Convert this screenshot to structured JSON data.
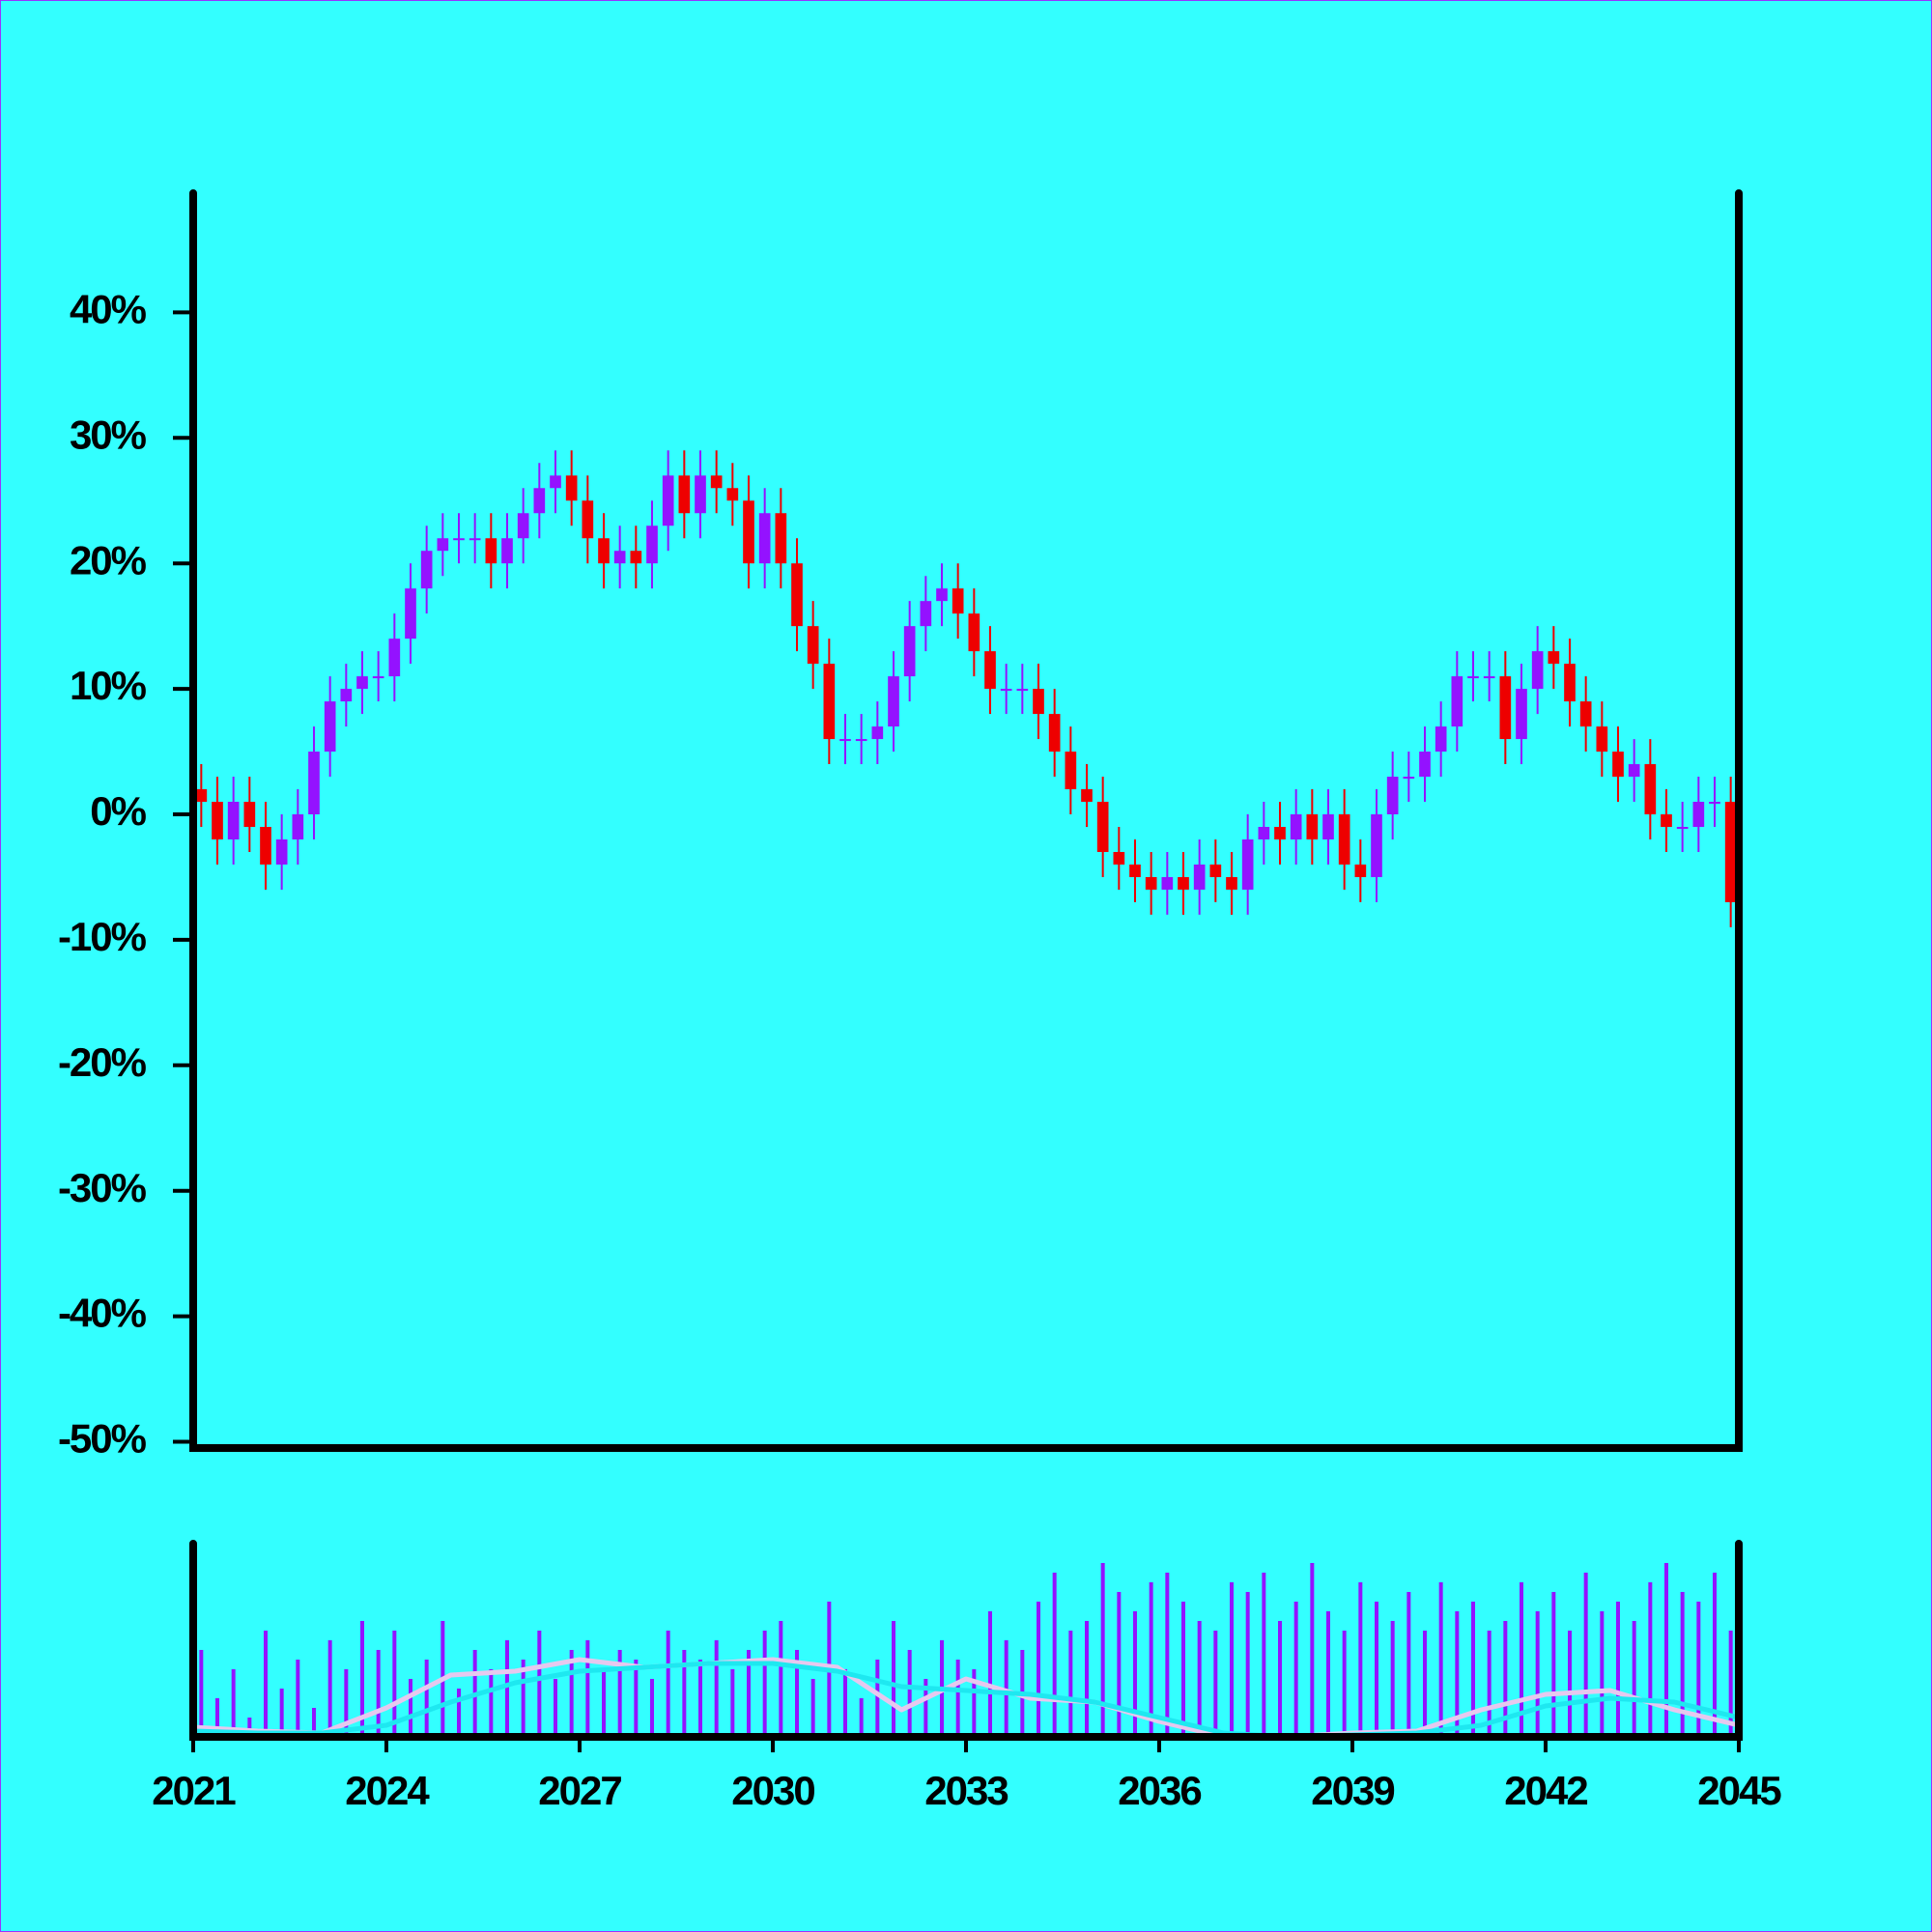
{
  "chart_data": {
    "type": "candlestick",
    "x": [
      2021.125,
      2021.375,
      2021.625,
      2021.875,
      2022.125,
      2022.375,
      2022.625,
      2022.875,
      2023.125,
      2023.375,
      2023.625,
      2023.875,
      2024.125,
      2024.375,
      2024.625,
      2024.875,
      2025.125,
      2025.375,
      2025.625,
      2025.875,
      2026.125,
      2026.375,
      2026.625,
      2026.875,
      2027.125,
      2027.375,
      2027.625,
      2027.875,
      2028.125,
      2028.375,
      2028.625,
      2028.875,
      2029.125,
      2029.375,
      2029.625,
      2029.875,
      2030.125,
      2030.375,
      2030.625,
      2030.875,
      2031.125,
      2031.375,
      2031.625,
      2031.875,
      2032.125,
      2032.375,
      2032.625,
      2032.875,
      2033.125,
      2033.375,
      2033.625,
      2033.875,
      2034.125,
      2034.375,
      2034.625,
      2034.875,
      2035.125,
      2035.375,
      2035.625,
      2035.875,
      2036.125,
      2036.375,
      2036.625,
      2036.875,
      2037.125,
      2037.375,
      2037.625,
      2037.875,
      2038.125,
      2038.375,
      2038.625,
      2038.875,
      2039.125,
      2039.375,
      2039.625,
      2039.875,
      2040.125,
      2040.375,
      2040.625,
      2040.875,
      2041.125,
      2041.375,
      2041.625,
      2041.875,
      2042.125,
      2042.375,
      2042.625,
      2042.875,
      2043.125,
      2043.375,
      2043.625,
      2043.875,
      2044.125,
      2044.375,
      2044.625,
      2044.875
    ],
    "open": [
      2,
      1,
      -2,
      1,
      -1,
      -4,
      -2,
      0,
      5,
      9,
      10,
      11,
      11,
      14,
      18,
      21,
      22,
      22,
      22,
      20,
      22,
      24,
      26,
      27,
      25,
      22,
      20,
      21,
      20,
      23,
      27,
      24,
      27,
      26,
      25,
      20,
      24,
      20,
      15,
      12,
      6,
      6,
      6,
      7,
      11,
      15,
      17,
      18,
      16,
      13,
      10,
      10,
      10,
      8,
      5,
      2,
      1,
      -3,
      -4,
      -5,
      -6,
      -5,
      -6,
      -4,
      -5,
      -6,
      -2,
      -1,
      -2,
      0,
      -2,
      0,
      -4,
      -5,
      0,
      3,
      3,
      5,
      7,
      11,
      11,
      11,
      6,
      10,
      13,
      12,
      9,
      7,
      5,
      3,
      4,
      0,
      -1,
      -1,
      1,
      1
    ],
    "high": [
      4,
      3,
      3,
      3,
      1,
      0,
      2,
      7,
      11,
      12,
      13,
      13,
      16,
      20,
      23,
      24,
      24,
      24,
      24,
      24,
      26,
      28,
      29,
      29,
      27,
      24,
      23,
      23,
      25,
      29,
      29,
      29,
      29,
      28,
      27,
      26,
      26,
      22,
      17,
      14,
      8,
      8,
      9,
      13,
      17,
      19,
      20,
      20,
      18,
      15,
      12,
      12,
      12,
      10,
      7,
      4,
      3,
      -1,
      -2,
      -3,
      -3,
      -3,
      -2,
      -2,
      -3,
      0,
      1,
      1,
      2,
      2,
      2,
      2,
      -2,
      2,
      5,
      5,
      7,
      9,
      13,
      13,
      13,
      13,
      12,
      15,
      15,
      14,
      11,
      9,
      7,
      6,
      6,
      2,
      1,
      3,
      3,
      3
    ],
    "low": [
      -1,
      -4,
      -4,
      -3,
      -6,
      -6,
      -4,
      -2,
      3,
      7,
      8,
      9,
      9,
      12,
      16,
      19,
      20,
      20,
      18,
      18,
      20,
      22,
      24,
      23,
      20,
      18,
      18,
      18,
      18,
      21,
      22,
      22,
      24,
      23,
      18,
      18,
      18,
      13,
      10,
      4,
      4,
      4,
      4,
      5,
      9,
      13,
      15,
      14,
      11,
      8,
      8,
      8,
      6,
      3,
      0,
      -1,
      -5,
      -6,
      -7,
      -8,
      -8,
      -8,
      -8,
      -7,
      -8,
      -8,
      -4,
      -4,
      -4,
      -4,
      -4,
      -6,
      -7,
      -7,
      -2,
      1,
      1,
      3,
      5,
      9,
      9,
      4,
      4,
      8,
      10,
      7,
      5,
      3,
      1,
      1,
      -2,
      -3,
      -3,
      -3,
      -1,
      -9
    ],
    "close": [
      1,
      -2,
      1,
      -1,
      -4,
      -2,
      0,
      5,
      9,
      10,
      11,
      11,
      14,
      18,
      21,
      22,
      22,
      22,
      20,
      22,
      24,
      26,
      27,
      25,
      22,
      20,
      21,
      20,
      23,
      27,
      24,
      27,
      26,
      25,
      20,
      24,
      20,
      15,
      12,
      6,
      6,
      6,
      7,
      11,
      15,
      17,
      18,
      16,
      13,
      10,
      10,
      10,
      8,
      5,
      2,
      1,
      -3,
      -4,
      -5,
      -6,
      -5,
      -6,
      -4,
      -5,
      -6,
      -2,
      -1,
      -2,
      0,
      -2,
      0,
      -4,
      -5,
      0,
      3,
      3,
      5,
      7,
      11,
      11,
      11,
      6,
      10,
      13,
      12,
      9,
      7,
      5,
      3,
      4,
      0,
      -1,
      -1,
      1,
      1,
      -7
    ],
    "up_color": "#9412ff",
    "down_color": "#ee0000",
    "xlim": [
      2021,
      2045
    ],
    "xticks": [
      2021,
      2024,
      2027,
      2030,
      2033,
      2036,
      2039,
      2042,
      2045
    ],
    "ylim": [
      -50.5,
      49.5
    ],
    "yticks": [
      {
        "value": -50,
        "label": "-50%"
      },
      {
        "value": -40,
        "label": "-40%"
      },
      {
        "value": -30,
        "label": "-30%"
      },
      {
        "value": -20,
        "label": "-20%"
      },
      {
        "value": -10,
        "label": "-10%"
      },
      {
        "value": 0,
        "label": "0%"
      },
      {
        "value": 10,
        "label": "10%"
      },
      {
        "value": 20,
        "label": "20%"
      },
      {
        "value": 30,
        "label": "30%"
      },
      {
        "value": 40,
        "label": "40%"
      }
    ],
    "volume": {
      "color": "#9412ff",
      "ylim": [
        0,
        100
      ],
      "values": [
        45,
        20,
        35,
        10,
        55,
        25,
        40,
        15,
        50,
        35,
        60,
        45,
        55,
        30,
        40,
        60,
        25,
        45,
        35,
        50,
        40,
        55,
        30,
        45,
        50,
        35,
        45,
        40,
        30,
        55,
        45,
        40,
        50,
        35,
        45,
        55,
        60,
        45,
        30,
        70,
        35,
        20,
        40,
        60,
        45,
        30,
        50,
        40,
        35,
        65,
        50,
        45,
        70,
        85,
        55,
        60,
        90,
        75,
        65,
        80,
        85,
        70,
        60,
        55,
        80,
        75,
        85,
        60,
        70,
        90,
        65,
        55,
        80,
        70,
        60,
        75,
        55,
        80,
        65,
        70,
        55,
        60,
        80,
        65,
        75,
        55,
        85,
        65,
        70,
        60,
        80,
        90,
        75,
        70,
        85,
        55
      ]
    },
    "moving_averages": [
      {
        "color": "#e6c8ee",
        "x": [
          2021,
          2022,
          2023,
          2024,
          2025,
          2026,
          2027,
          2028,
          2029,
          2030,
          2031,
          2032,
          2033,
          2034,
          2035,
          2036,
          2037,
          2038,
          2039,
          2040,
          2041,
          2042,
          2043,
          2044,
          2045
        ],
        "values": [
          5,
          3,
          2,
          15,
          32,
          34,
          40,
          36,
          38,
          40,
          36,
          14,
          30,
          20,
          18,
          8,
          0,
          0,
          2,
          3,
          14,
          22,
          24,
          14,
          6
        ]
      },
      {
        "color": "#1ee8f0",
        "x": [
          2021,
          2022,
          2023,
          2024,
          2025,
          2026,
          2027,
          2028,
          2029,
          2030,
          2031,
          2032,
          2033,
          2034,
          2035,
          2036,
          2037,
          2038,
          2039,
          2040,
          2041,
          2042,
          2043,
          2044,
          2045
        ],
        "values": [
          3,
          2,
          2,
          6,
          18,
          28,
          34,
          36,
          38,
          38,
          34,
          26,
          24,
          22,
          18,
          10,
          2,
          0,
          1,
          2,
          6,
          16,
          20,
          18,
          10
        ]
      }
    ]
  }
}
